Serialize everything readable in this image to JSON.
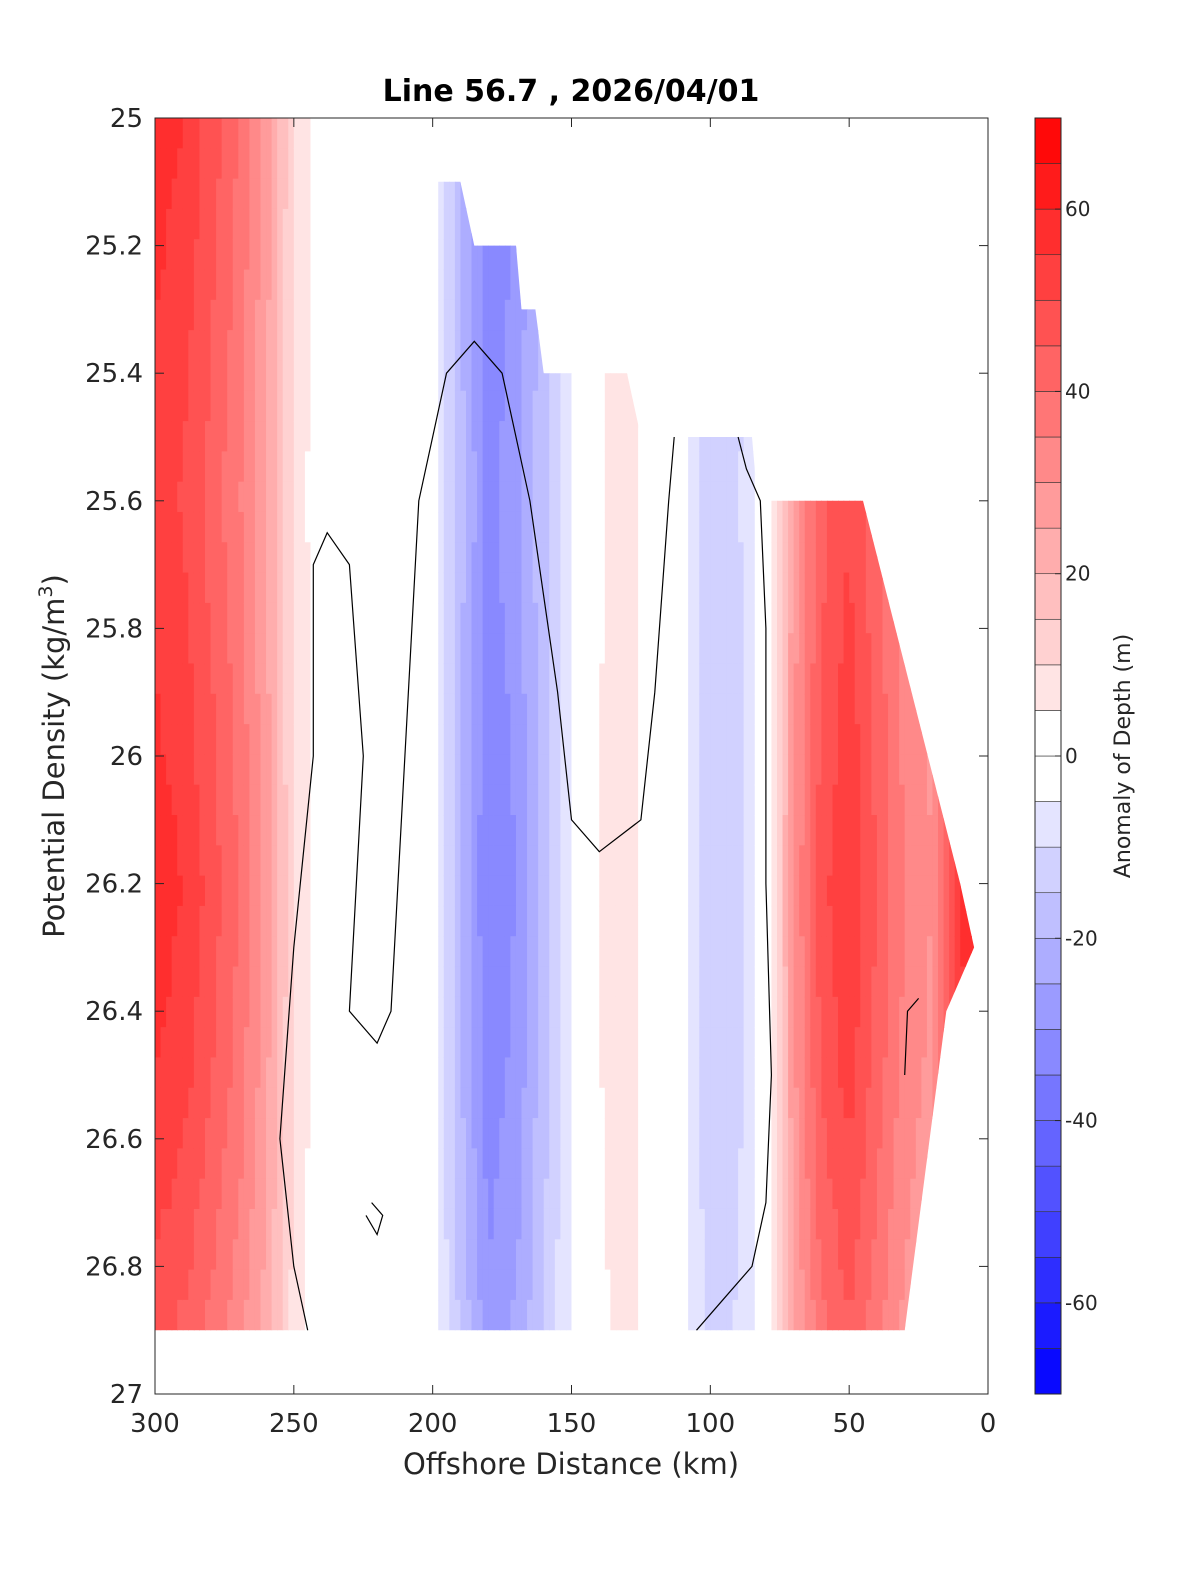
{
  "chart_data": {
    "type": "contour",
    "title": "Line 56.7 , 2026/04/01",
    "xlabel": "Offshore Distance (km)",
    "ylabel_main": "Potential Density (kg/m",
    "ylabel_sup": "3",
    "ylabel_close": ")",
    "xlim": [
      300,
      0
    ],
    "ylim": [
      25,
      27
    ],
    "x_reversed": true,
    "y_reversed": true,
    "x_ticks": [
      300,
      250,
      200,
      150,
      100,
      50,
      0
    ],
    "x_tick_labels": [
      "300",
      "250",
      "200",
      "150",
      "100",
      "50",
      "0"
    ],
    "y_ticks": [
      25,
      25.2,
      25.4,
      25.6,
      25.8,
      26,
      26.2,
      26.4,
      26.6,
      26.8,
      27
    ],
    "y_tick_labels": [
      "25",
      "25.2",
      "25.4",
      "25.6",
      "25.8",
      "26",
      "26.2",
      "26.4",
      "26.6",
      "26.8",
      "27"
    ],
    "colorbar": {
      "label": "Anomaly of Depth (m)",
      "range": [
        -70,
        70
      ],
      "step": 5,
      "ticks": [
        60,
        40,
        20,
        0,
        -20,
        -40,
        -60
      ],
      "tick_labels": [
        "60",
        "40",
        "20",
        "0",
        "-20",
        "-40",
        "-60"
      ],
      "max_color": "#ff0000",
      "mid_color": "#ffffff",
      "min_color": "#0000ff"
    },
    "field_profile": {
      "x_km": [
        300,
        290,
        280,
        270,
        260,
        250,
        240,
        230,
        220,
        210,
        200,
        190,
        180,
        170,
        160,
        150,
        140,
        130,
        120,
        110,
        100,
        90,
        80,
        70,
        60,
        50,
        40,
        30,
        20,
        10,
        5
      ],
      "anomaly_m": [
        58,
        55,
        48,
        40,
        28,
        10,
        1,
        -1,
        2,
        1,
        -3,
        -20,
        -35,
        -30,
        -18,
        -5,
        5,
        8,
        2,
        -3,
        -15,
        -12,
        -2,
        30,
        48,
        55,
        45,
        35,
        30,
        55,
        60
      ]
    },
    "density_modulation": {
      "density": [
        25,
        25.3,
        25.6,
        25.9,
        26.2,
        26.5,
        26.8,
        26.9
      ],
      "factor": [
        1.0,
        0.95,
        0.9,
        0.95,
        1.0,
        0.95,
        0.85,
        0.8
      ]
    },
    "data_boundary": {
      "top_edge": [
        [
          300,
          25
        ],
        [
          220,
          25
        ],
        [
          215,
          25.1
        ],
        [
          190,
          25.1
        ],
        [
          185,
          25.2
        ],
        [
          170,
          25.2
        ],
        [
          168,
          25.3
        ],
        [
          163,
          25.3
        ],
        [
          160,
          25.4
        ],
        [
          130,
          25.4
        ],
        [
          125,
          25.5
        ],
        [
          85,
          25.5
        ],
        [
          83,
          25.6
        ],
        [
          45,
          25.6
        ],
        [
          10,
          26.2
        ],
        [
          5,
          26.3
        ]
      ],
      "bottom_density": 26.9,
      "inshore_edge": [
        [
          5,
          26.3
        ],
        [
          15,
          26.4
        ],
        [
          30,
          26.9
        ]
      ]
    },
    "zero_contours": [
      [
        [
          245,
          26.9
        ],
        [
          250,
          26.8
        ],
        [
          255,
          26.6
        ],
        [
          250,
          26.3
        ],
        [
          243,
          26.0
        ],
        [
          243,
          25.7
        ],
        [
          238,
          25.65
        ],
        [
          230,
          25.7
        ],
        [
          225,
          26.0
        ],
        [
          230,
          26.4
        ],
        [
          220,
          26.45
        ],
        [
          215,
          26.4
        ],
        [
          210,
          26.0
        ],
        [
          205,
          25.6
        ],
        [
          195,
          25.4
        ],
        [
          185,
          25.35
        ],
        [
          175,
          25.4
        ],
        [
          165,
          25.6
        ],
        [
          155,
          25.9
        ],
        [
          150,
          26.1
        ],
        [
          140,
          26.15
        ],
        [
          125,
          26.1
        ],
        [
          120,
          25.9
        ],
        [
          115,
          25.6
        ],
        [
          113,
          25.5
        ]
      ],
      [
        [
          90,
          25.5
        ],
        [
          87,
          25.55
        ],
        [
          82,
          25.6
        ],
        [
          80,
          25.8
        ],
        [
          80,
          26.2
        ],
        [
          78,
          26.5
        ],
        [
          80,
          26.7
        ],
        [
          85,
          26.8
        ],
        [
          95,
          26.85
        ],
        [
          105,
          26.9
        ]
      ],
      [
        [
          222,
          26.7
        ],
        [
          218,
          26.72
        ],
        [
          220,
          26.75
        ],
        [
          224,
          26.72
        ]
      ],
      [
        [
          30,
          26.5
        ],
        [
          29,
          26.4
        ],
        [
          25,
          26.38
        ]
      ]
    ]
  }
}
